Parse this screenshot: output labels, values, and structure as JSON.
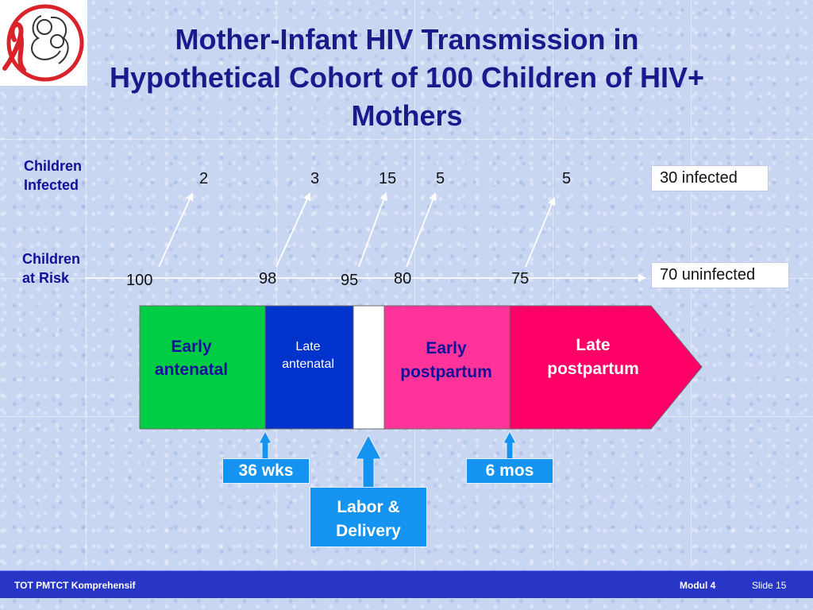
{
  "title_lines": [
    "Mother-Infant HIV Transmission in",
    "Hypothetical Cohort of 100 Children of HIV+",
    "Mothers"
  ],
  "row_labels": {
    "infected": [
      "Children",
      "Infected"
    ],
    "at_risk": [
      "Children",
      "at Risk"
    ]
  },
  "infected_counts": [
    "2",
    "3",
    "15",
    "5",
    "5"
  ],
  "at_risk_counts": [
    "100",
    "98",
    "95",
    "80",
    "75"
  ],
  "results": {
    "infected": "30 infected",
    "uninfected": "70 uninfected"
  },
  "phases": {
    "early_antenatal": [
      "Early",
      "antenatal"
    ],
    "late_antenatal": [
      "Late",
      "antenatal"
    ],
    "early_postpartum": [
      "Early",
      "postpartum"
    ],
    "late_postpartum": [
      "Late",
      "postpartum"
    ]
  },
  "callouts": {
    "wks36": "36 wks",
    "mos6": "6 mos",
    "labor": [
      "Labor &",
      "Delivery"
    ]
  },
  "footer": {
    "left": "TOT PMTCT Komprehensif",
    "modul": "Modul 4",
    "slide": "Slide 15"
  },
  "colors": {
    "early_antenatal": "#00cc44",
    "late_antenatal": "#0033cc",
    "labor_gap": "#ffffff",
    "early_postpartum": "#ff3399",
    "late_postpartum": "#ff0066",
    "callout": "#1493f0",
    "footer": "#2836c6"
  }
}
